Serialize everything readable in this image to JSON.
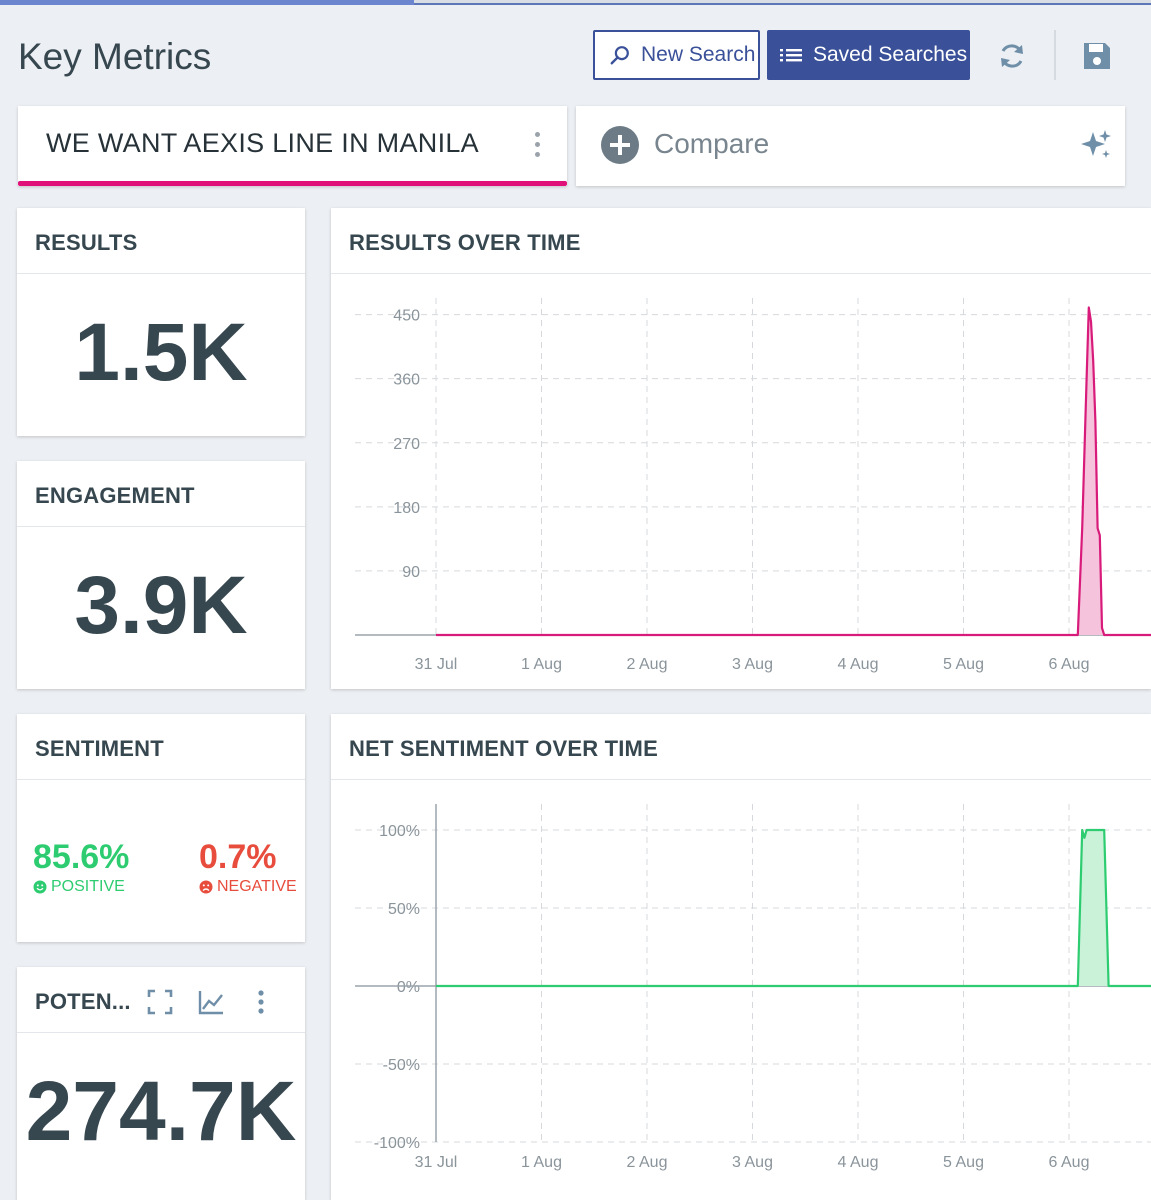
{
  "page": {
    "title": "Key Metrics",
    "progress_fraction": 0.36
  },
  "toolbar": {
    "new_search_label": "New Search",
    "saved_searches_label": "Saved Searches",
    "refresh_icon": "refresh-icon",
    "save_icon": "floppy-disk-icon"
  },
  "search": {
    "query": "WE WANT AEXIS LINE IN MANILA",
    "accent_color": "#e0127a"
  },
  "compare": {
    "label": "Compare"
  },
  "results": {
    "title": "RESULTS",
    "value": "1.5K"
  },
  "engagement": {
    "title": "ENGAGEMENT",
    "value": "3.9K"
  },
  "sentiment": {
    "title": "SENTIMENT",
    "positive_value": "85.6%",
    "positive_label": "POSITIVE",
    "negative_value": "0.7%",
    "negative_label": "NEGATIVE",
    "positive_color": "#2ecc71",
    "negative_color": "#e74c3c"
  },
  "potential": {
    "title": "POTEN...",
    "value": "274.7K"
  },
  "chart_data": [
    {
      "type": "area",
      "title": "RESULTS OVER TIME",
      "x_ticks": [
        "31 Jul",
        "1 Aug",
        "2 Aug",
        "3 Aug",
        "4 Aug",
        "5 Aug",
        "6 Aug"
      ],
      "y_ticks": [
        "450",
        "360",
        "270",
        "180",
        "90"
      ],
      "ylim": [
        0,
        500
      ],
      "grid": true,
      "color": "#d81b7a",
      "fill": "#f6c3dc",
      "series": [
        {
          "x": [
            "31 Jul 00:00",
            "6 Aug 00:00",
            "6 Aug 02:00",
            "6 Aug 03:00",
            "6 Aug 04:00",
            "6 Aug 04:30",
            "6 Aug 05:00",
            "6 Aug 05:30",
            "6 Aug 06:00",
            "6 Aug 06:30",
            "6 Aug 07:00",
            "6 Aug 07:30",
            "6 Aug 08:00",
            "6 Aug 09:00",
            "6 Aug 10:00",
            "7 Aug 00:00"
          ],
          "values": [
            0,
            0,
            0,
            150,
            360,
            460,
            440,
            385,
            300,
            150,
            140,
            10,
            0,
            0,
            0,
            0
          ]
        }
      ]
    },
    {
      "type": "area",
      "title": "NET SENTIMENT OVER TIME",
      "x_ticks": [
        "31 Jul",
        "1 Aug",
        "2 Aug",
        "3 Aug",
        "4 Aug",
        "5 Aug",
        "6 Aug"
      ],
      "y_ticks": [
        "100%",
        "50%",
        "0%",
        "-50%",
        "-100%"
      ],
      "ylim": [
        -100,
        100
      ],
      "grid": true,
      "color": "#2ecc71",
      "fill": "#c9f2d8",
      "series": [
        {
          "x": [
            "31 Jul 00:00",
            "6 Aug 00:00",
            "6 Aug 02:00",
            "6 Aug 03:00",
            "6 Aug 03:30",
            "6 Aug 04:00",
            "6 Aug 08:00",
            "6 Aug 09:00",
            "6 Aug 10:00",
            "7 Aug 00:00"
          ],
          "values": [
            0,
            0,
            0,
            100,
            95,
            100,
            100,
            0,
            0,
            0
          ]
        }
      ]
    }
  ]
}
